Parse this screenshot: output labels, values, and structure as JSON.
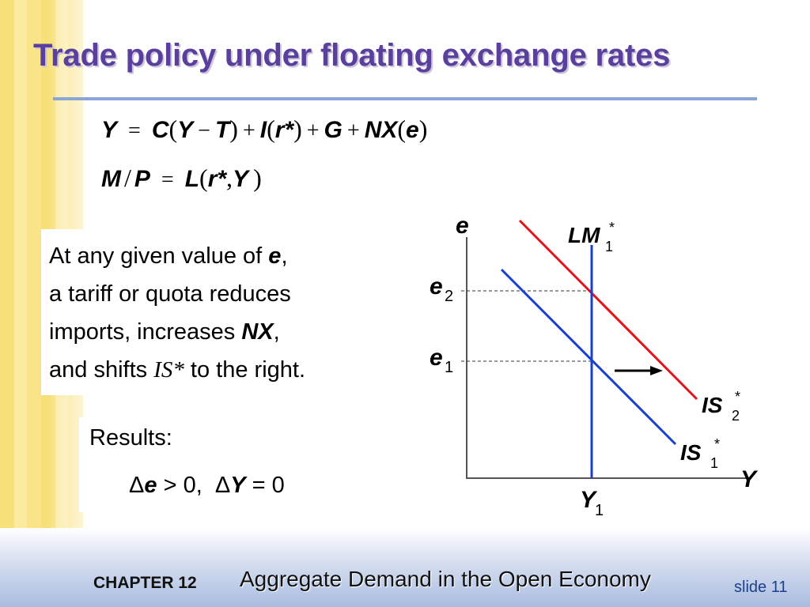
{
  "slide": {
    "title": "Trade policy under floating exchange rates",
    "chapter": "CHAPTER 12",
    "subtitle": "Aggregate Demand in the Open Economy",
    "slide_number": "slide 11"
  },
  "equations": {
    "goods_market": {
      "Y": "Y",
      "eq": "=",
      "C": "C",
      "lp1": "(",
      "Y2": "Y",
      "minus": "−",
      "T": "T",
      "rp1": ")",
      "plus1": "+",
      "I": "I",
      "lp2": "(",
      "r": "r*",
      "rp2": ")",
      "plus2": "+",
      "G": "G",
      "plus3": "+",
      "NX": "NX",
      "lp3": "(",
      "e": "e",
      "rp3": ")"
    },
    "money_market": {
      "M": "M",
      "slash": "/",
      "P": "P",
      "eq": "=",
      "L": "L",
      "lp": "(",
      "r": "r*",
      "comma": ",",
      "Y": "Y",
      "rp": ")"
    }
  },
  "body_text": {
    "line1_a": "At any given value of ",
    "line1_e": "e",
    "line1_b": ",",
    "line2": "a tariff or quota reduces",
    "line3_a": "imports, increases ",
    "line3_nx": "NX",
    "line3_b": ",",
    "line4_a": "and shifts ",
    "line4_is": "IS*",
    "line4_b": " to the right."
  },
  "results": {
    "label": "Results:",
    "delta1": "Δ",
    "var1": "e",
    "rel1": " > 0,",
    "delta2": "Δ",
    "var2": "Y",
    "rel2": " = 0"
  },
  "diagram": {
    "y_axis_label": "e",
    "x_axis_label": "Y",
    "lm_label": "LM",
    "lm_sub": "1",
    "lm_sup": "*",
    "is1_label": "IS",
    "is1_sub": "1",
    "is1_sup": "*",
    "is2_label": "IS",
    "is2_sub": "2",
    "is2_sup": "*",
    "e1_label": "e",
    "e1_sub": "1",
    "e2_label": "e",
    "e2_sub": "2",
    "y1_label": "Y",
    "y1_sub": "1",
    "colors": {
      "is1": "#1a3fcf",
      "is2": "#e3131b",
      "lm": "#1a3fcf",
      "axis": "#555555",
      "arrow": "#000000"
    }
  }
}
